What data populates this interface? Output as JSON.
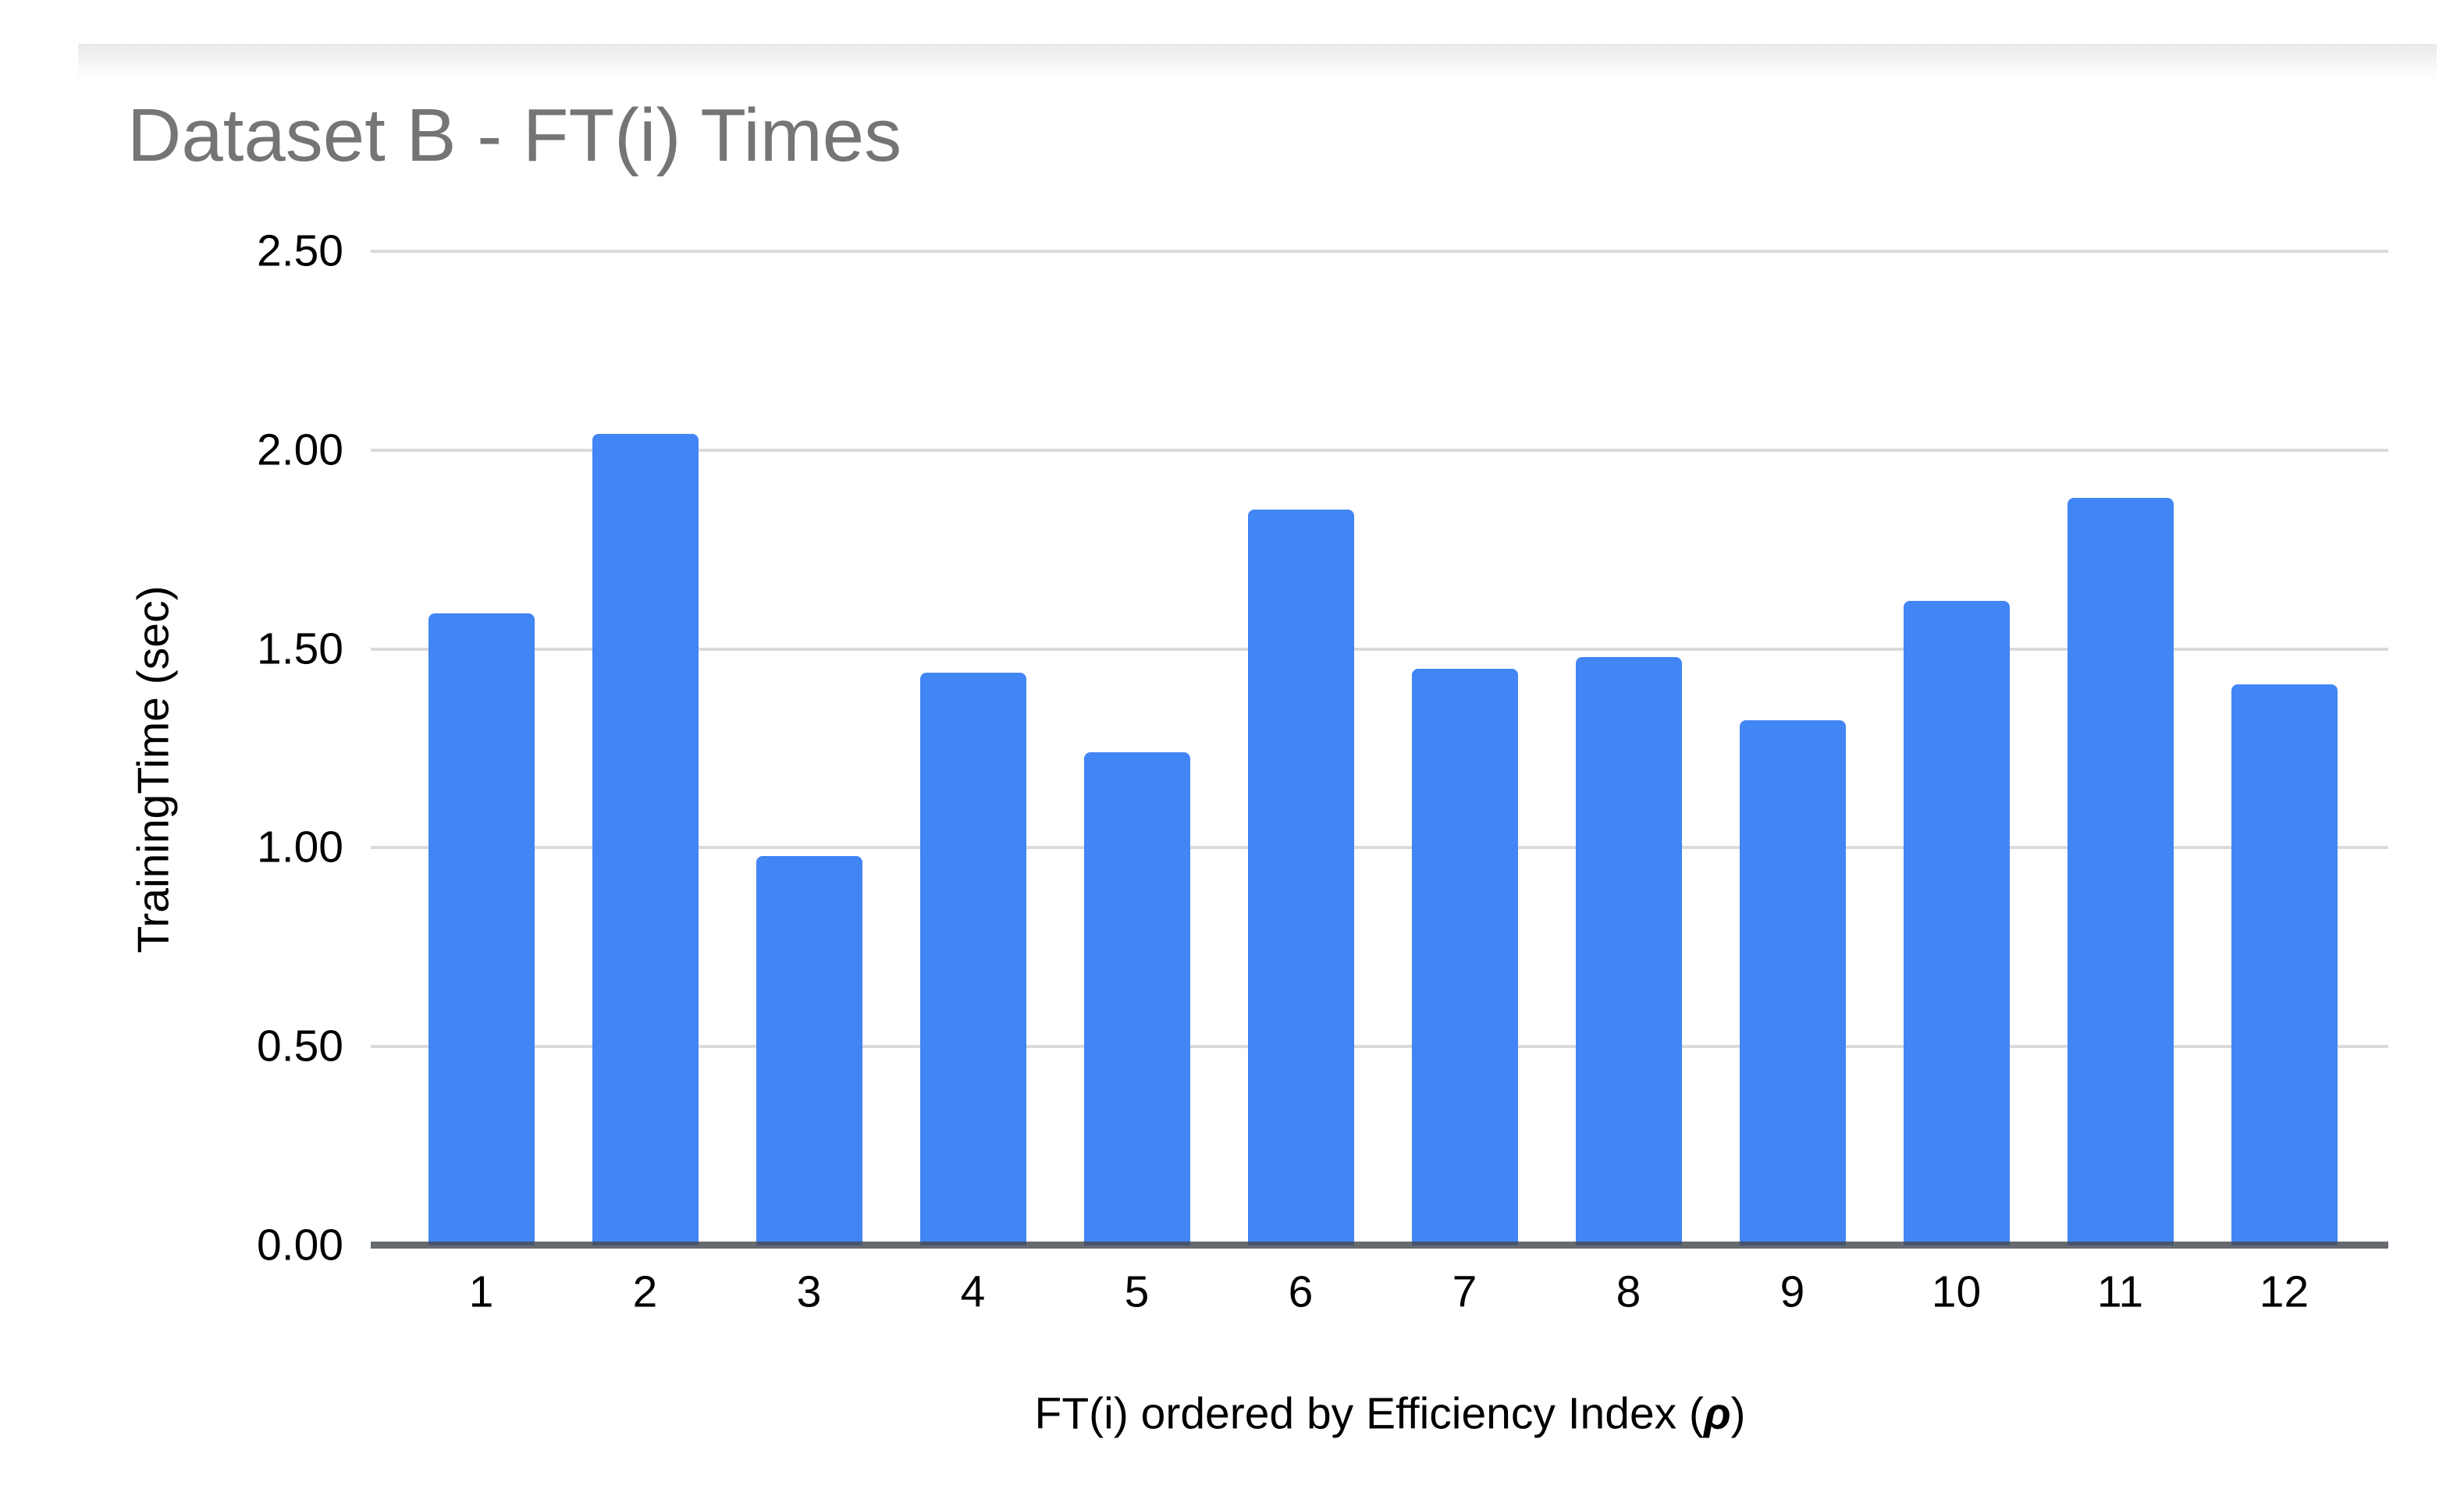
{
  "chart": {
    "title": "Dataset B - FT(i) Times",
    "y_axis_label": "TrainingTime (sec)",
    "x_axis_label_prefix": "FT(i) ordered by Efficiency Index (",
    "x_axis_label_symbol": "ρ",
    "x_axis_label_suffix": ")"
  },
  "chart_data": {
    "type": "bar",
    "title": "Dataset B - FT(i) Times",
    "categories": [
      "1",
      "2",
      "3",
      "4",
      "5",
      "6",
      "7",
      "8",
      "9",
      "10",
      "11",
      "12"
    ],
    "values": [
      1.59,
      2.04,
      0.98,
      1.44,
      1.24,
      1.85,
      1.45,
      1.48,
      1.32,
      1.62,
      1.88,
      1.41
    ],
    "xlabel": "FT(i) ordered by Efficiency Index (ρ)",
    "ylabel": "TrainingTime (sec)",
    "ylim": [
      0,
      2.5
    ],
    "yticks": [
      0.0,
      0.5,
      1.0,
      1.5,
      2.0,
      2.5
    ],
    "ytick_labels": [
      "0.00",
      "0.50",
      "1.00",
      "1.50",
      "2.00",
      "2.50"
    ],
    "grid": true,
    "legend_position": "none",
    "bar_color": "#4285f4"
  },
  "colors": {
    "bar": "#4285f4",
    "gridline": "#dadada",
    "axis_line": "#464a50",
    "title_text": "#757575",
    "tick_text": "#000000"
  }
}
